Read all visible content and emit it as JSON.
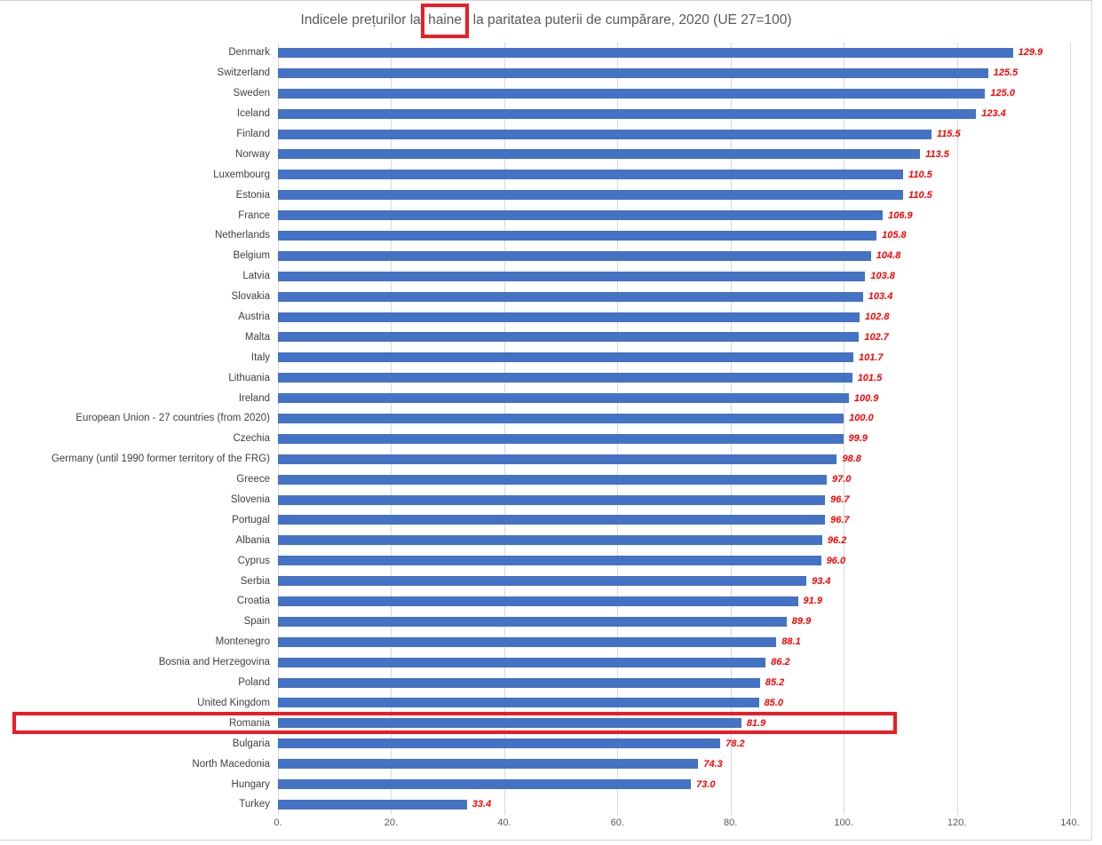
{
  "chart_title": {
    "prefix": "Indicele prețurilor la ",
    "highlighted_word": "haine",
    "suffix": ", la paritatea puterii de cumpărare, 2020 (UE 27=100)",
    "full": "Indicele prețurilor la haine, la paritatea puterii de cumpărare, 2020 (UE 27=100)"
  },
  "chart_data": {
    "type": "bar",
    "orientation": "horizontal",
    "title": "Indicele prețurilor la haine, la paritatea puterii de cumpărare, 2020 (UE 27=100)",
    "xlabel": "",
    "ylabel": "",
    "xlim": [
      0,
      140
    ],
    "x_tick_labels": [
      "0.",
      "20.",
      "40.",
      "60.",
      "80.",
      "100.",
      "120.",
      "140."
    ],
    "grid": "vertical-gridlines",
    "legend": "none",
    "value_label_format": "one-decimal, red bold italic, right of bar",
    "categories": [
      "Denmark",
      "Switzerland",
      "Sweden",
      "Iceland",
      "Finland",
      "Norway",
      "Luxembourg",
      "Estonia",
      "France",
      "Netherlands",
      "Belgium",
      "Latvia",
      "Slovakia",
      "Austria",
      "Malta",
      "Italy",
      "Lithuania",
      "Ireland",
      "European Union - 27 countries (from 2020)",
      "Czechia",
      "Germany (until 1990 former territory of the FRG)",
      "Greece",
      "Slovenia",
      "Portugal",
      "Albania",
      "Cyprus",
      "Serbia",
      "Croatia",
      "Spain",
      "Montenegro",
      "Bosnia and Herzegovina",
      "Poland",
      "United Kingdom",
      "Romania",
      "Bulgaria",
      "North Macedonia",
      "Hungary",
      "Turkey"
    ],
    "values": [
      129.9,
      125.5,
      125.0,
      123.4,
      115.5,
      113.5,
      110.5,
      110.5,
      106.9,
      105.8,
      104.8,
      103.8,
      103.4,
      102.8,
      102.7,
      101.7,
      101.5,
      100.9,
      100.0,
      99.9,
      98.8,
      97.0,
      96.7,
      96.7,
      96.2,
      96.0,
      93.4,
      91.9,
      89.9,
      88.1,
      86.2,
      85.2,
      85.0,
      81.9,
      78.2,
      74.3,
      73.0,
      33.4
    ],
    "annotations": {
      "boxed_title_word": "haine",
      "boxed_row_category": "Romania"
    }
  },
  "colors": {
    "bar": "#4472C4",
    "value_label": "#FF0000",
    "annotation_box": "#ED1C24",
    "gridline": "#D9D9D9",
    "axis_text": "#595959",
    "category_text": "#404040",
    "title_text": "#595959",
    "frame_border": "#D3D3D3"
  }
}
